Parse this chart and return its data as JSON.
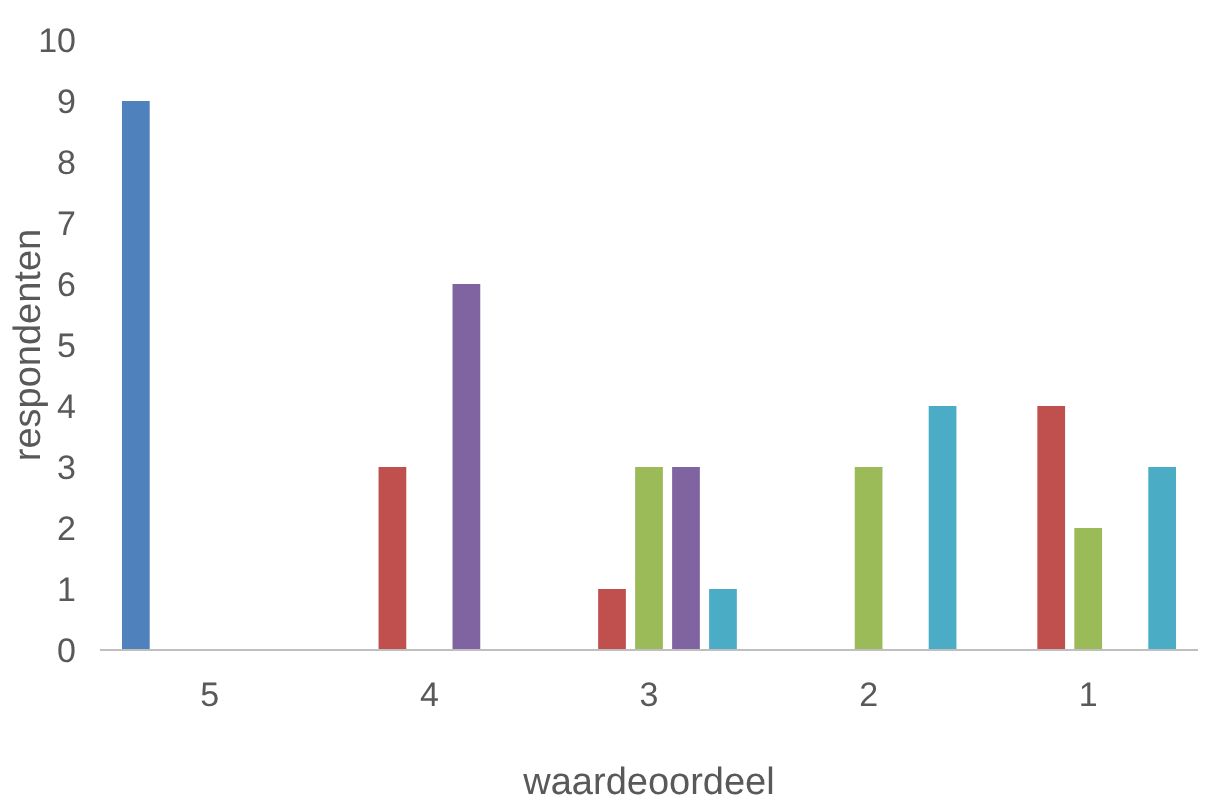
{
  "chart_data": {
    "type": "bar",
    "xlabel": "waardeoordeel",
    "ylabel": "respondenten",
    "categories": [
      "5",
      "4",
      "3",
      "2",
      "1"
    ],
    "series": [
      {
        "color": "#4f81bd",
        "values": [
          9,
          0,
          0,
          0,
          0
        ]
      },
      {
        "color": "#c0504d",
        "values": [
          0,
          3,
          1,
          0,
          4
        ]
      },
      {
        "color": "#9bbb59",
        "values": [
          0,
          0,
          3,
          3,
          2
        ]
      },
      {
        "color": "#8064a2",
        "values": [
          0,
          6,
          3,
          0,
          0
        ]
      },
      {
        "color": "#4bacc6",
        "values": [
          0,
          0,
          1,
          4,
          3
        ]
      }
    ],
    "ylim": [
      0,
      10
    ],
    "yticks": [
      0,
      1,
      2,
      3,
      4,
      5,
      6,
      7,
      8,
      9,
      10
    ],
    "grid": false
  }
}
